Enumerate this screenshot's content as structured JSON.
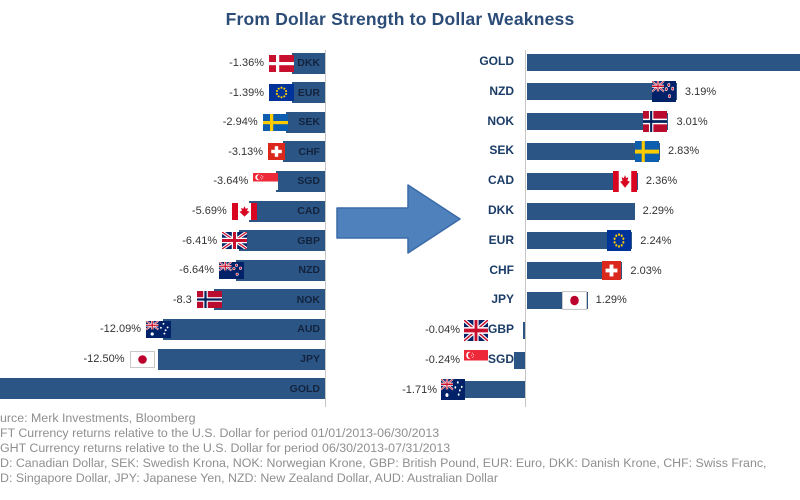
{
  "title": "From Dollar Strength to Dollar Weakness",
  "colors": {
    "bar": "#2B5585",
    "title": "#2B4C77",
    "category_label": "#1B3C66",
    "value_label": "#333333",
    "axis_line": "#C5C5C5",
    "arrow_fill": "#4F81BD",
    "arrow_border": "#3B6CA8",
    "footer_text": "#8F8F8F"
  },
  "chart_data": [
    {
      "id": "left-period",
      "type": "bar",
      "orientation": "horizontal",
      "direction": "negative-left",
      "axis_note": "bars extend left from zero baseline; GOLD bar cut off by image edge",
      "rows": [
        {
          "code": "DKK",
          "value": -1.36,
          "value_label": "-1.36%",
          "flag": "dk"
        },
        {
          "code": "EUR",
          "value": -1.39,
          "value_label": "-1.39%",
          "flag": "eu"
        },
        {
          "code": "SEK",
          "value": -2.94,
          "value_label": "-2.94%",
          "flag": "se"
        },
        {
          "code": "CHF",
          "value": -3.13,
          "value_label": "-3.13%",
          "flag": "ch"
        },
        {
          "code": "SGD",
          "value": -3.64,
          "value_label": "-3.64%",
          "flag": "sg"
        },
        {
          "code": "CAD",
          "value": -5.69,
          "value_label": "-5.69%",
          "flag": "ca"
        },
        {
          "code": "GBP",
          "value": -6.41,
          "value_label": "-6.41%",
          "flag": "gb"
        },
        {
          "code": "NZD",
          "value": -6.64,
          "value_label": "-6.64%",
          "flag": "nz"
        },
        {
          "code": "NOK",
          "value": -8.3,
          "value_label": "-8.3",
          "flag": "no"
        },
        {
          "code": "AUD",
          "value": -12.09,
          "value_label": "-12.09%",
          "flag": "au"
        },
        {
          "code": "JPY",
          "value": -12.5,
          "value_label": "-12.50%",
          "flag": "jp"
        },
        {
          "code": "GOLD",
          "value": null,
          "value_label": "",
          "flag": null,
          "cut": true
        }
      ]
    },
    {
      "id": "right-period",
      "type": "bar",
      "orientation": "horizontal",
      "direction": "positive-right",
      "axis_note": "bars extend right from zero baseline; GOLD bar cut off by image edge; AUD category label hidden behind bar",
      "rows": [
        {
          "code": "GOLD",
          "value": null,
          "value_label": "",
          "flag": null,
          "cut": true
        },
        {
          "code": "NZD",
          "value": 3.19,
          "value_label": "3.19%",
          "flag": "nz"
        },
        {
          "code": "NOK",
          "value": 3.01,
          "value_label": "3.01%",
          "flag": "no"
        },
        {
          "code": "SEK",
          "value": 2.83,
          "value_label": "2.83%",
          "flag": "se"
        },
        {
          "code": "CAD",
          "value": 2.36,
          "value_label": "2.36%",
          "flag": "ca"
        },
        {
          "code": "DKK",
          "value": 2.29,
          "value_label": "2.29%",
          "flag": null
        },
        {
          "code": "EUR",
          "value": 2.24,
          "value_label": "2.24%",
          "flag": "eu"
        },
        {
          "code": "CHF",
          "value": 2.03,
          "value_label": "2.03%",
          "flag": "ch"
        },
        {
          "code": "JPY",
          "value": 1.29,
          "value_label": "1.29%",
          "flag": "jp"
        },
        {
          "code": "GBP",
          "value": -0.04,
          "value_label": "-0.04%",
          "flag": "gb"
        },
        {
          "code": "SGD",
          "value": -0.24,
          "value_label": "-0.24%",
          "flag": "sg"
        },
        {
          "code": "AUD",
          "value": -1.71,
          "value_label": "-1.71%",
          "flag": "au",
          "label_visible": false
        }
      ]
    }
  ],
  "footer": {
    "lines": [
      "urce: Merk Investments, Bloomberg",
      "FT Currency returns relative to the U.S. Dollar for period 01/01/2013-06/30/2013",
      "GHT Currency returns relative to the U.S. Dollar for period 06/30/2013-07/31/2013",
      "D: Canadian Dollar, SEK: Swedish Krona, NOK: Norwegian Krone, GBP: British Pound, EUR: Euro, DKK: Danish Krone, CHF: Swiss Franc,",
      "D: Singapore Dollar, JPY: Japanese Yen, NZD: New Zealand Dollar, AUD: Australian Dollar"
    ]
  }
}
